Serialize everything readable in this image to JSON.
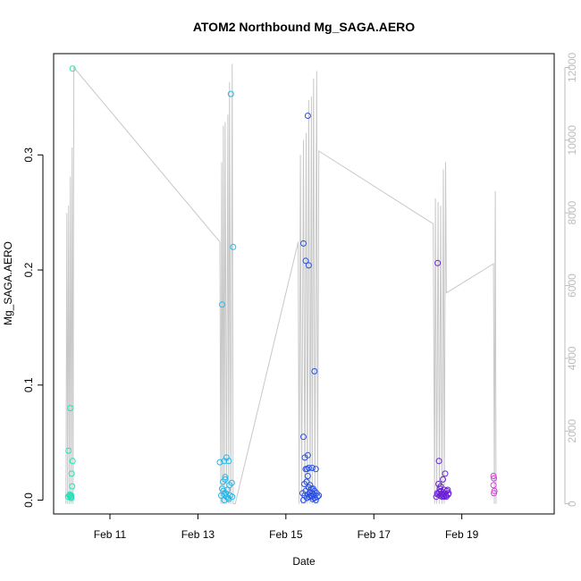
{
  "chart_data": {
    "type": "scatter",
    "title": "ATOM2 Northbound Mg_SAGA.AERO",
    "xlabel": "Date",
    "ylabel": "Mg_SAGA.AERO",
    "x_ticks": [
      "Feb 11",
      "Feb 13",
      "Feb 15",
      "Feb 17",
      "Feb 19"
    ],
    "x_tick_values": [
      11.0,
      13.0,
      15.0,
      17.0,
      19.0
    ],
    "xlim": [
      9.72,
      21.1
    ],
    "ylim": [
      -0.012,
      0.388
    ],
    "y_ticks": [
      0.0,
      0.1,
      0.2,
      0.3
    ],
    "y_tick_labels": [
      "0.0",
      "0.1",
      "0.2",
      "0.3"
    ],
    "right_axis": {
      "ylim": [
        -280,
        12380
      ],
      "ticks": [
        0,
        2000,
        4000,
        6000,
        8000,
        10000,
        12000
      ],
      "tick_labels": [
        "0",
        "2000",
        "4000",
        "6000",
        "8000",
        "10000",
        "12000"
      ],
      "color": "#bdbdbd"
    },
    "grid": false,
    "color_scale": "time-gradient (teal → blue → purple → magenta)",
    "series": [
      {
        "color": "#1fe3b8",
        "points": [
          [
            10.05,
            0.003
          ],
          [
            10.08,
            0.004
          ],
          [
            10.1,
            0.003
          ],
          [
            10.12,
            0.002
          ],
          [
            10.06,
            0.043
          ],
          [
            10.1,
            0.08
          ],
          [
            10.15,
            0.375
          ],
          [
            10.15,
            0.034
          ],
          [
            10.13,
            0.023
          ],
          [
            10.14,
            0.012
          ],
          [
            10.12,
            0.004
          ],
          [
            10.09,
            0.005
          ],
          [
            10.11,
            0.002
          ]
        ]
      },
      {
        "color": "#22b8e8",
        "points": [
          [
            13.5,
            0.033
          ],
          [
            13.55,
            0.17
          ],
          [
            13.6,
            0.034
          ],
          [
            13.62,
            0.02
          ],
          [
            13.65,
            0.037
          ],
          [
            13.7,
            0.034
          ],
          [
            13.75,
            0.353
          ],
          [
            13.8,
            0.22
          ],
          [
            13.77,
            0.015
          ],
          [
            13.72,
            0.013
          ],
          [
            13.55,
            0.01
          ],
          [
            13.58,
            0.008
          ],
          [
            13.6,
            0.005
          ],
          [
            13.65,
            0.003
          ],
          [
            13.68,
            0.002
          ],
          [
            13.7,
            0.001
          ],
          [
            13.53,
            0.004
          ],
          [
            13.6,
            0.0
          ],
          [
            13.63,
            0.006
          ],
          [
            13.67,
            0.009
          ],
          [
            13.73,
            0.004
          ],
          [
            13.78,
            0.003
          ],
          [
            13.57,
            0.016
          ],
          [
            13.62,
            0.018
          ]
        ]
      },
      {
        "color": "#2a4fe0",
        "points": [
          [
            15.4,
            0.223
          ],
          [
            15.45,
            0.208
          ],
          [
            15.5,
            0.334
          ],
          [
            15.52,
            0.204
          ],
          [
            15.65,
            0.112
          ],
          [
            15.4,
            0.055
          ],
          [
            15.43,
            0.037
          ],
          [
            15.5,
            0.039
          ],
          [
            15.48,
            0.027
          ],
          [
            15.52,
            0.028
          ],
          [
            15.6,
            0.028
          ],
          [
            15.68,
            0.027
          ],
          [
            15.45,
            0.027
          ],
          [
            15.5,
            0.021
          ],
          [
            15.47,
            0.016
          ],
          [
            15.55,
            0.013
          ],
          [
            15.58,
            0.01
          ],
          [
            15.62,
            0.01
          ],
          [
            15.65,
            0.008
          ],
          [
            15.7,
            0.006
          ],
          [
            15.42,
            0.014
          ],
          [
            15.38,
            0.006
          ],
          [
            15.4,
            0.0
          ],
          [
            15.45,
            0.008
          ],
          [
            15.5,
            0.005
          ],
          [
            15.53,
            0.003
          ],
          [
            15.57,
            0.004
          ],
          [
            15.6,
            0.006
          ],
          [
            15.63,
            0.005
          ],
          [
            15.66,
            0.002
          ],
          [
            15.68,
            0.0
          ],
          [
            15.72,
            0.003
          ],
          [
            15.75,
            0.004
          ],
          [
            15.52,
            0.011
          ],
          [
            15.55,
            0.007
          ],
          [
            15.58,
            0.003
          ],
          [
            15.48,
            0.002
          ],
          [
            15.43,
            0.004
          ],
          [
            15.61,
            0.001
          ]
        ]
      },
      {
        "color": "#6a20d8",
        "points": [
          [
            18.45,
            0.206
          ],
          [
            18.48,
            0.034
          ],
          [
            18.5,
            0.01
          ],
          [
            18.53,
            0.008
          ],
          [
            18.55,
            0.005
          ],
          [
            18.58,
            0.004
          ],
          [
            18.6,
            0.006
          ],
          [
            18.63,
            0.004
          ],
          [
            18.65,
            0.003
          ],
          [
            18.68,
            0.009
          ],
          [
            18.7,
            0.006
          ],
          [
            18.45,
            0.005
          ],
          [
            18.42,
            0.003
          ],
          [
            18.5,
            0.004
          ],
          [
            18.55,
            0.003
          ],
          [
            18.62,
            0.023
          ],
          [
            18.57,
            0.018
          ],
          [
            18.47,
            0.014
          ],
          [
            18.52,
            0.012
          ],
          [
            18.6,
            0.009
          ],
          [
            18.66,
            0.008
          ],
          [
            18.44,
            0.006
          ],
          [
            18.49,
            0.007
          ],
          [
            18.54,
            0.005
          ],
          [
            18.59,
            0.003
          ],
          [
            18.64,
            0.004
          ],
          [
            18.69,
            0.005
          ]
        ]
      },
      {
        "color": "#d63fd6",
        "points": [
          [
            19.72,
            0.021
          ],
          [
            19.73,
            0.019
          ],
          [
            19.72,
            0.013
          ],
          [
            19.74,
            0.008
          ],
          [
            19.73,
            0.006
          ]
        ]
      }
    ],
    "altitude_line": {
      "color": "#c8c8c8",
      "points": [
        [
          10.0,
          0
        ],
        [
          10.02,
          8000
        ],
        [
          10.04,
          0
        ],
        [
          10.06,
          8200
        ],
        [
          10.08,
          0
        ],
        [
          10.1,
          9000
        ],
        [
          10.12,
          0
        ],
        [
          10.14,
          9800
        ],
        [
          10.16,
          0
        ],
        [
          10.18,
          12000
        ],
        [
          13.5,
          7200
        ],
        [
          13.52,
          0
        ],
        [
          13.54,
          9400
        ],
        [
          13.56,
          0
        ],
        [
          13.58,
          10400
        ],
        [
          13.6,
          0
        ],
        [
          13.62,
          10500
        ],
        [
          13.65,
          0
        ],
        [
          13.68,
          10700
        ],
        [
          13.7,
          0
        ],
        [
          13.72,
          11600
        ],
        [
          13.75,
          0
        ],
        [
          13.78,
          12100
        ],
        [
          13.8,
          0
        ],
        [
          13.85,
          0
        ],
        [
          15.28,
          7200
        ],
        [
          15.3,
          0
        ],
        [
          15.33,
          9600
        ],
        [
          15.36,
          0
        ],
        [
          15.4,
          10000
        ],
        [
          15.43,
          0
        ],
        [
          15.46,
          10200
        ],
        [
          15.49,
          0
        ],
        [
          15.52,
          11100
        ],
        [
          15.55,
          0
        ],
        [
          15.58,
          11200
        ],
        [
          15.6,
          0
        ],
        [
          15.63,
          11700
        ],
        [
          15.66,
          0
        ],
        [
          15.7,
          11900
        ],
        [
          15.72,
          0
        ],
        [
          15.75,
          9700
        ],
        [
          18.35,
          7700
        ],
        [
          18.38,
          0
        ],
        [
          18.4,
          8400
        ],
        [
          18.43,
          0
        ],
        [
          18.46,
          8300
        ],
        [
          18.49,
          0
        ],
        [
          18.52,
          8200
        ],
        [
          18.55,
          0
        ],
        [
          18.58,
          9200
        ],
        [
          18.6,
          0
        ],
        [
          18.63,
          9400
        ],
        [
          18.65,
          5800
        ],
        [
          19.72,
          6600
        ],
        [
          19.74,
          0
        ],
        [
          19.76,
          8600
        ],
        [
          19.78,
          0
        ]
      ]
    }
  }
}
